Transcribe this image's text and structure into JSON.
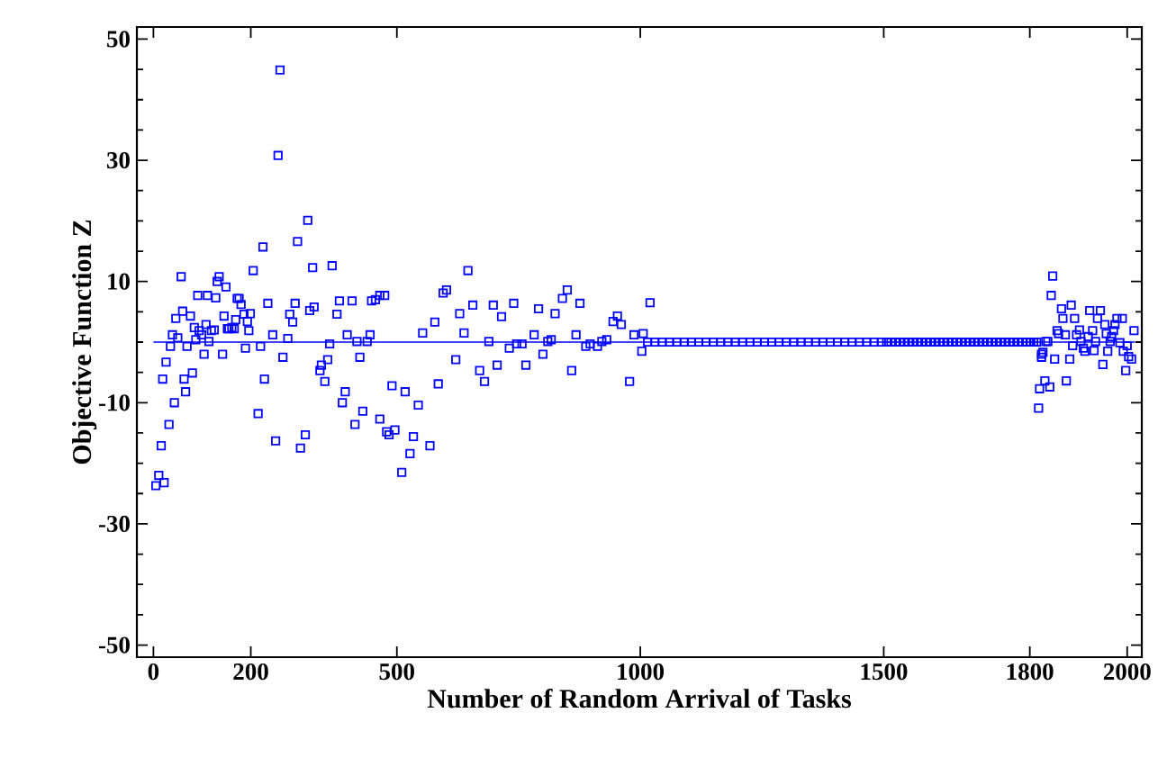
{
  "chart_data": {
    "type": "scatter",
    "xlabel": "Number of Random Arrival of Tasks",
    "ylabel": "Objective Function Z",
    "xlim": [
      -34,
      2030
    ],
    "ylim": [
      -52,
      52
    ],
    "xticks": [
      0,
      200,
      500,
      1000,
      1500,
      1800,
      2000
    ],
    "yticks": [
      -50,
      -30,
      -10,
      10,
      30,
      50
    ],
    "series": [
      {
        "marker": "square",
        "color": "#0000ff",
        "x": [
          5,
          11,
          22,
          16,
          32,
          43,
          19,
          26,
          35,
          39,
          50,
          46,
          57,
          60,
          63,
          66,
          69,
          76,
          80,
          84,
          87,
          91,
          94,
          99,
          104,
          108,
          111,
          114,
          119,
          125,
          128,
          131,
          135,
          142,
          145,
          149,
          152,
          155,
          161,
          166,
          169,
          172,
          176,
          180,
          186,
          189,
          193,
          196,
          199,
          205,
          215,
          220,
          228,
          225,
          235,
          245,
          251,
          256,
          260,
          266,
          276,
          280,
          286,
          291,
          296,
          302,
          312,
          317,
          321,
          327,
          330,
          367,
          345,
          342,
          358,
          352,
          362,
          377,
          382,
          398,
          408,
          394,
          388,
          418,
          424,
          430,
          414,
          439,
          445,
          448,
          456,
          465,
          475,
          465,
          479,
          484,
          496,
          490,
          510,
          527,
          534,
          568,
          517,
          544,
          585,
          553,
          578,
          595,
          602,
          621,
          629,
          638,
          646,
          656,
          670,
          680,
          689,
          698,
          706,
          715,
          731,
          740,
          746,
          765,
          757,
          782,
          791,
          800,
          810,
          825,
          817,
          840,
          850,
          859,
          868,
          876,
          888,
          897,
          912,
          921,
          931,
          944,
          953,
          961,
          978,
          987,
          1020,
          1003,
          1006,
          1824,
          1833,
          1818,
          1820,
          1831,
          1841,
          1824,
          1827,
          1837,
          1847,
          1844,
          1851,
          1856,
          1859,
          1865,
          1868,
          1873,
          1875,
          1882,
          1885,
          1888,
          1892,
          1896,
          1902,
          1905,
          1910,
          1913,
          1923,
          1920,
          1929,
          1932,
          1935,
          1939,
          1945,
          1950,
          1954,
          1957,
          1960,
          1965,
          1968,
          1972,
          1975,
          1979,
          1985,
          1990,
          1992,
          1997,
          2000,
          2003,
          2009,
          2014
        ],
        "values": [
          -23.7,
          -22.0,
          -23.2,
          -17.1,
          -13.6,
          -10.0,
          -6.1,
          -3.3,
          -0.7,
          1.2,
          0.7,
          3.9,
          10.8,
          5.1,
          -6.1,
          -8.2,
          -0.7,
          4.3,
          -5.1,
          2.4,
          0.4,
          7.7,
          1.9,
          1.2,
          -2.0,
          2.9,
          7.7,
          0.1,
          1.9,
          2.0,
          7.3,
          10.0,
          10.8,
          -2.0,
          4.3,
          9.1,
          2.2,
          2.2,
          2.4,
          2.2,
          3.7,
          7.2,
          7.2,
          6.2,
          4.6,
          -1.0,
          3.4,
          1.9,
          4.7,
          11.8,
          -11.8,
          -0.7,
          -6.1,
          15.7,
          6.4,
          1.2,
          -16.3,
          30.8,
          44.9,
          -2.5,
          0.6,
          4.6,
          3.3,
          6.4,
          16.6,
          -17.5,
          -15.3,
          20.1,
          5.2,
          12.3,
          5.8,
          12.6,
          -3.8,
          -4.7,
          -2.9,
          -6.5,
          -0.3,
          4.6,
          6.8,
          1.2,
          6.8,
          -8.2,
          -10.0,
          0.1,
          -2.5,
          -11.4,
          -13.6,
          0.1,
          1.2,
          6.8,
          7.0,
          7.7,
          7.7,
          -12.7,
          -14.8,
          -15.3,
          -14.5,
          -7.2,
          -21.5,
          -18.4,
          -15.6,
          -17.1,
          -8.2,
          -10.4,
          -6.9,
          1.5,
          3.3,
          8.1,
          8.6,
          -2.9,
          4.7,
          1.5,
          11.8,
          6.1,
          -4.7,
          -6.5,
          0.1,
          6.1,
          -3.8,
          4.2,
          -1.0,
          6.4,
          -0.3,
          -3.8,
          -0.3,
          1.2,
          5.5,
          -2.0,
          0.1,
          4.7,
          0.4,
          7.2,
          8.6,
          -4.7,
          1.2,
          6.4,
          -0.7,
          -0.3,
          -0.7,
          0.1,
          0.4,
          3.4,
          4.3,
          2.9,
          -6.5,
          1.2,
          6.5,
          -1.5,
          1.4,
          -2.0,
          0.1,
          -10.9,
          -7.7,
          -6.4,
          -7.4,
          -2.5,
          -1.7,
          0.1,
          10.9,
          7.7,
          -2.8,
          1.9,
          1.4,
          5.5,
          3.9,
          1.2,
          -6.4,
          -2.8,
          6.1,
          -0.6,
          3.9,
          1.2,
          2.0,
          0.1,
          -1.0,
          -1.5,
          5.2,
          0.9,
          1.9,
          -1.4,
          0.1,
          3.9,
          5.2,
          -3.7,
          2.9,
          1.4,
          -1.5,
          0.1,
          0.9,
          1.9,
          2.9,
          3.9,
          -0.1,
          3.9,
          -1.5,
          -4.7,
          -0.6,
          -2.4,
          -2.8,
          1.9
        ]
      },
      {
        "marker": "square",
        "color": "#0000ff",
        "x": [
          1015,
          1030,
          1045,
          1060,
          1075,
          1090,
          1105,
          1120,
          1135,
          1150,
          1165,
          1180,
          1195,
          1210,
          1225,
          1240,
          1255,
          1270,
          1285,
          1300,
          1315,
          1330,
          1345,
          1360,
          1375,
          1390,
          1405,
          1420,
          1435,
          1450,
          1465,
          1480,
          1495,
          1506,
          1515,
          1524,
          1533,
          1542,
          1551,
          1560,
          1569,
          1578,
          1587,
          1596,
          1605,
          1614,
          1623,
          1632,
          1641,
          1650,
          1659,
          1668,
          1677,
          1686,
          1695,
          1704,
          1713,
          1722,
          1731,
          1740,
          1749,
          1758,
          1767,
          1776,
          1785,
          1794,
          1802,
          1808,
          1814
        ],
        "values": [
          0,
          0,
          0,
          0,
          0,
          0,
          0,
          0,
          0,
          0,
          0,
          0,
          0,
          0,
          0,
          0,
          0,
          0,
          0,
          0,
          0,
          0,
          0,
          0,
          0,
          0,
          0,
          0,
          0,
          0,
          0,
          0,
          0,
          0,
          0,
          0,
          0,
          0,
          0,
          0,
          0,
          0,
          0,
          0,
          0,
          0,
          0,
          0,
          0,
          0,
          0,
          0,
          0,
          0,
          0,
          0,
          0,
          0,
          0,
          0,
          0,
          0,
          0,
          0,
          0,
          0,
          0,
          0,
          0
        ]
      },
      {
        "type": "line",
        "marker": "none",
        "color": "#0000ff",
        "x": [
          0,
          2016
        ],
        "values": [
          0,
          0
        ]
      }
    ]
  }
}
